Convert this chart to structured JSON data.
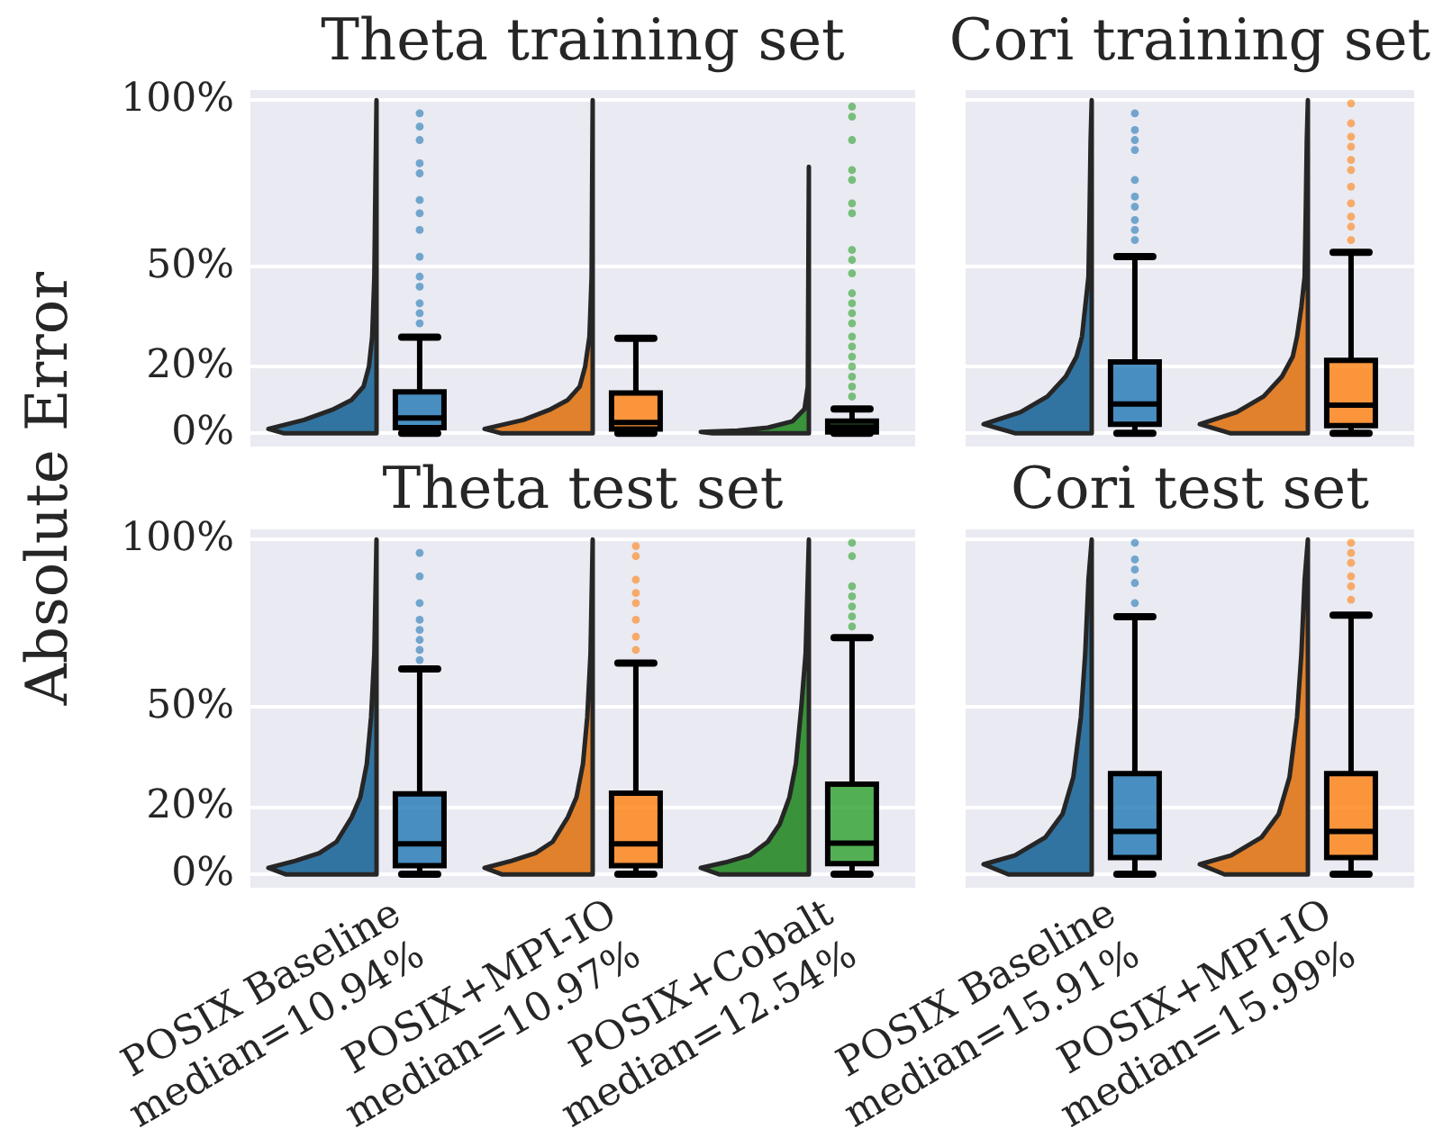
{
  "chart_data": [
    {
      "type": "box",
      "title": "Theta training set",
      "ylabel": "Absolute Error",
      "categories": [
        "POSIX Baseline\nmedian=10.94%",
        "POSIX+MPI-IO\nmedian=10.97%",
        "POSIX+Cobalt\nmedian=12.54%"
      ],
      "colors": [
        "#1f77b4",
        "#ff7f0e",
        "#2ca02c"
      ],
      "boxes": [
        {
          "low": 0,
          "q1": 1.7,
          "median": 4.6,
          "q3": 12.4,
          "high": 28.8,
          "outliers": [
            96,
            92,
            88,
            81,
            78,
            70,
            66,
            61,
            53,
            47,
            44,
            39,
            36,
            33
          ]
        },
        {
          "low": 0,
          "q1": 1.3,
          "median": 3.2,
          "q3": 12.1,
          "high": 28.5
        },
        {
          "low": 0,
          "q1": 0.4,
          "median": 1.9,
          "q3": 3.6,
          "high": 7.3,
          "outliers": [
            98,
            95,
            88,
            79,
            76,
            69,
            66,
            55,
            52,
            48,
            42,
            39,
            36,
            33,
            29,
            26,
            23,
            20,
            17,
            14,
            11
          ]
        }
      ],
      "ylim": [
        -4,
        103
      ],
      "yticks": [
        {
          "value": 0,
          "label": "0%"
        },
        {
          "value": 20,
          "label": "20%"
        },
        {
          "value": 50,
          "label": "50%"
        },
        {
          "value": 100,
          "label": "100%"
        }
      ],
      "grid": "y",
      "tick_labels": "y"
    },
    {
      "type": "box",
      "title": "Cori training set",
      "categories": [
        "POSIX Baseline\nmedian=15.91%",
        "POSIX+MPI-IO\nmedian=15.99%"
      ],
      "colors": [
        "#1f77b4",
        "#ff7f0e"
      ],
      "boxes": [
        {
          "low": 0,
          "q1": 2.7,
          "median": 8.8,
          "q3": 21.4,
          "high": 53,
          "outliers": [
            96,
            91,
            88,
            85,
            76,
            71,
            68,
            64,
            61,
            58
          ]
        },
        {
          "low": 0,
          "q1": 2.3,
          "median": 8.4,
          "q3": 21.9,
          "high": 54.3,
          "outliers": [
            99,
            93,
            89,
            86,
            82,
            79,
            74,
            69,
            65,
            62,
            58
          ]
        }
      ],
      "ylim": [
        -4,
        103
      ],
      "yticks": [
        0,
        20,
        50,
        100
      ],
      "grid": "y",
      "tick_labels": false
    },
    {
      "type": "box",
      "title": "Theta test set",
      "categories": [
        "POSIX Baseline\nmedian=10.94%",
        "POSIX+MPI-IO\nmedian=10.97%",
        "POSIX+Cobalt\nmedian=12.54%"
      ],
      "colors": [
        "#1f77b4",
        "#ff7f0e",
        "#2ca02c"
      ],
      "boxes": [
        {
          "low": 0,
          "q1": 2.6,
          "median": 9.1,
          "q3": 24,
          "high": 61.3,
          "outliers": [
            96,
            89,
            81,
            76,
            73,
            70,
            67,
            64
          ]
        },
        {
          "low": 0,
          "q1": 2.6,
          "median": 9.1,
          "q3": 24.2,
          "high": 63.1,
          "outliers": [
            98,
            95,
            88,
            84,
            81,
            76,
            71,
            67
          ]
        },
        {
          "low": 0,
          "q1": 3.2,
          "median": 9.3,
          "q3": 26.9,
          "high": 70.7,
          "outliers": [
            99,
            95,
            86,
            83,
            80,
            77,
            74
          ]
        }
      ],
      "ylim": [
        -4,
        103
      ],
      "yticks": [
        {
          "value": 0,
          "label": "0%"
        },
        {
          "value": 20,
          "label": "20%"
        },
        {
          "value": 50,
          "label": "50%"
        },
        {
          "value": 100,
          "label": "100%"
        }
      ],
      "grid": "y"
    },
    {
      "type": "box",
      "title": "Cori test set",
      "categories": [
        "POSIX Baseline\nmedian=15.91%",
        "POSIX+MPI-IO\nmedian=15.99%"
      ],
      "colors": [
        "#1f77b4",
        "#ff7f0e"
      ],
      "boxes": [
        {
          "low": 0,
          "q1": 5,
          "median": 12.8,
          "q3": 30.1,
          "high": 76.9,
          "outliers": [
            99,
            94,
            91,
            87,
            81
          ]
        },
        {
          "low": 0,
          "q1": 5,
          "median": 12.8,
          "q3": 30.1,
          "high": 77.4,
          "outliers": [
            99,
            96,
            93,
            89,
            86,
            82
          ]
        }
      ],
      "ylim": [
        -4,
        103
      ],
      "yticks": [
        0,
        20,
        50,
        100
      ],
      "grid": "y",
      "tick_labels": "x"
    }
  ]
}
